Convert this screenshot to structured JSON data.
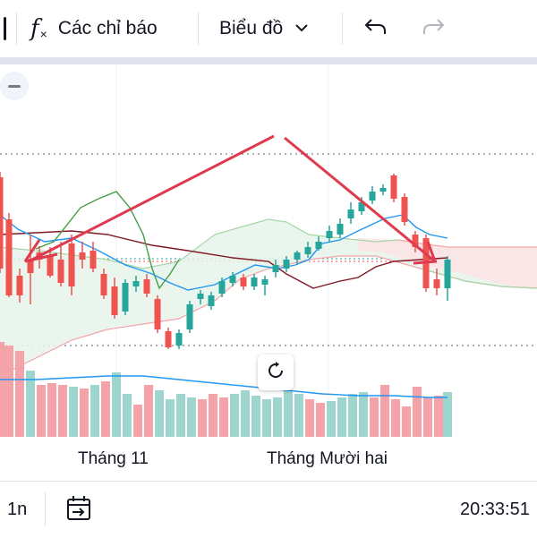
{
  "toolbar": {
    "indicators_label": "Các chỉ báo",
    "chart_type_label": "Biểu đồ",
    "icons": [
      "fx-icon",
      "chevron-down-icon",
      "undo-icon",
      "redo-icon"
    ]
  },
  "chart": {
    "x_labels": [
      "Tháng 11",
      "Tháng Mười hai"
    ],
    "colors": {
      "up": "#26a69a",
      "down": "#ef5350",
      "volume_up": "#9fd5cf",
      "volume_down": "#f5a3a8",
      "cloud_up": "#e6f4ea",
      "cloud_down": "#fde4e6",
      "blue_line": "#2196f3",
      "maroon_line": "#801922",
      "green_line": "#43a047",
      "drawing_red": "#e03a4e"
    }
  },
  "bottombar": {
    "interval_label": "1n",
    "time_label": "20:33:51",
    "icons": [
      "date-range-icon"
    ]
  }
}
